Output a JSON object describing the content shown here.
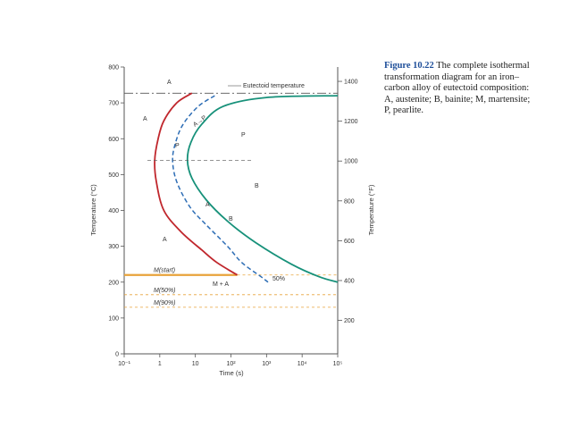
{
  "caption": {
    "figure_number": "Figure 10.22",
    "text": "The complete isothermal transformation diagram for an iron–carbon alloy of eutectoid composition: A, austenite; B, bainite; M, martensite; P, pearlite."
  },
  "chart_data": {
    "type": "line",
    "xlabel": "Time (s)",
    "ylabel": "Temperature (°C)",
    "y2label": "Temperature (°F)",
    "xscale": "log",
    "xlim": [
      0.1,
      100000
    ],
    "ylim": [
      0,
      800
    ],
    "x_ticks": [
      {
        "value": 0.1,
        "label": "10⁻¹"
      },
      {
        "value": 1,
        "label": "1"
      },
      {
        "value": 10,
        "label": "10"
      },
      {
        "value": 100,
        "label": "10²"
      },
      {
        "value": 1000,
        "label": "10³"
      },
      {
        "value": 10000,
        "label": "10⁴"
      },
      {
        "value": 100000,
        "label": "10⁵"
      }
    ],
    "y_ticks": [
      0,
      100,
      200,
      300,
      400,
      500,
      600,
      700,
      800
    ],
    "y2_ticks": [
      200,
      400,
      600,
      800,
      1000,
      1200,
      1400
    ],
    "colors": {
      "start_curve": "#c0272d",
      "finish_curve": "#17917a",
      "fifty_curve": "#2d6db5",
      "martensite": "#e8a33a",
      "axis": "#555555"
    },
    "eutectoid": {
      "temperature": 727,
      "label": "Eutectoid temperature"
    },
    "series": [
      {
        "style": "start",
        "points": [
          [
            8,
            727
          ],
          [
            3,
            700
          ],
          [
            1.3,
            650
          ],
          [
            0.9,
            600
          ],
          [
            0.72,
            540
          ],
          [
            0.8,
            480
          ],
          [
            1.3,
            400
          ],
          [
            4,
            340
          ],
          [
            15,
            290
          ],
          [
            40,
            255
          ],
          [
            150,
            220
          ]
        ]
      },
      {
        "style": "fifty",
        "points": [
          [
            35,
            720
          ],
          [
            12,
            690
          ],
          [
            4.5,
            640
          ],
          [
            2.8,
            590
          ],
          [
            2.3,
            540
          ],
          [
            3,
            480
          ],
          [
            7,
            410
          ],
          [
            20,
            360
          ],
          [
            80,
            300
          ],
          [
            200,
            255
          ],
          [
            700,
            215
          ],
          [
            1100,
            200
          ]
        ]
      },
      {
        "style": "finish",
        "points": [
          [
            100000,
            720
          ],
          [
            1000,
            715
          ],
          [
            60,
            690
          ],
          [
            15,
            640
          ],
          [
            7.5,
            590
          ],
          [
            6,
            540
          ],
          [
            8,
            490
          ],
          [
            20,
            430
          ],
          [
            80,
            370
          ],
          [
            500,
            310
          ],
          [
            5000,
            250
          ],
          [
            30000,
            215
          ],
          [
            100000,
            200
          ]
        ]
      }
    ],
    "martensite_lines": [
      {
        "label": "M(start)",
        "temperature": 220
      },
      {
        "label": "M(50%)",
        "temperature": 165
      },
      {
        "label": "M(90%)",
        "temperature": 130
      }
    ],
    "labels": {
      "austenite": "A",
      "pearlite": "P",
      "bainite": "B",
      "martensite_austenite": "M + A",
      "fifty_percent": "50%",
      "a_to_p": "A→P",
      "a_to_b": "A→B"
    }
  }
}
